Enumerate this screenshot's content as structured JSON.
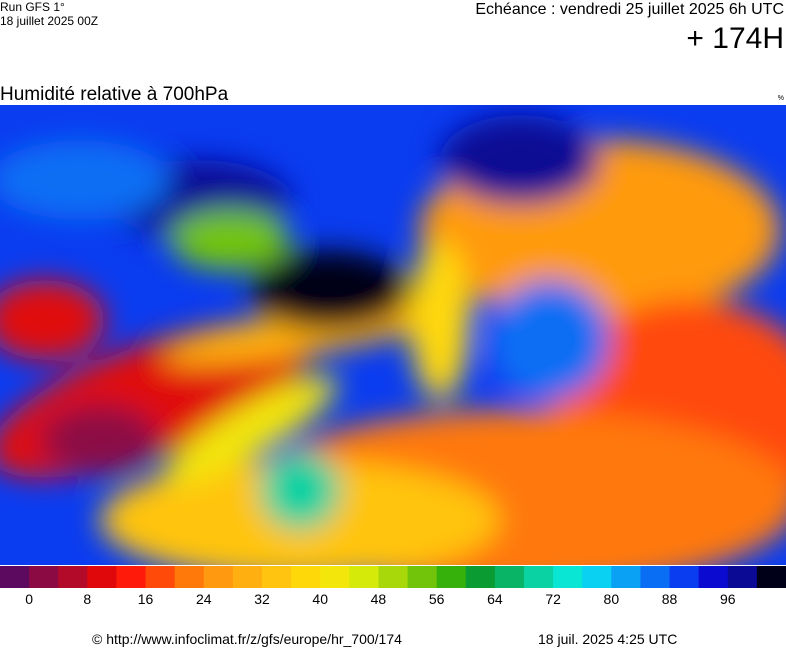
{
  "header": {
    "run": "Run GFS 1°",
    "date": "18 juillet 2025 00Z",
    "echeance": "Echéance : vendredi 25 juillet 2025 6h UTC",
    "lead": "+ 174H"
  },
  "map": {
    "title": "Humidité relative à 700hPa",
    "unit": "%"
  },
  "colorbar": {
    "lim": [
      -4,
      104
    ],
    "ticks": [
      0,
      8,
      16,
      24,
      32,
      40,
      48,
      56,
      64,
      72,
      80,
      88,
      96
    ],
    "colors": [
      "#5c0a60",
      "#8c0a44",
      "#b40a2a",
      "#e0080a",
      "#ff1a0a",
      "#ff4a0a",
      "#ff780a",
      "#ff9a10",
      "#ffb010",
      "#ffc410",
      "#ffd80a",
      "#f2e60a",
      "#d6ea0a",
      "#a8d80a",
      "#72c40a",
      "#36b00a",
      "#0a9c32",
      "#0ab466",
      "#0ad2a2",
      "#0ae6d4",
      "#0ad0f2",
      "#0aa0f4",
      "#0a6ef4",
      "#0a3cf0",
      "#0a0ad0",
      "#0a0a94",
      "#000018"
    ]
  },
  "footer": {
    "source": "© http://www.infoclimat.fr/z/gfs/europe/hr_700/174",
    "generated": "18 juil. 2025  4:25 UTC"
  }
}
